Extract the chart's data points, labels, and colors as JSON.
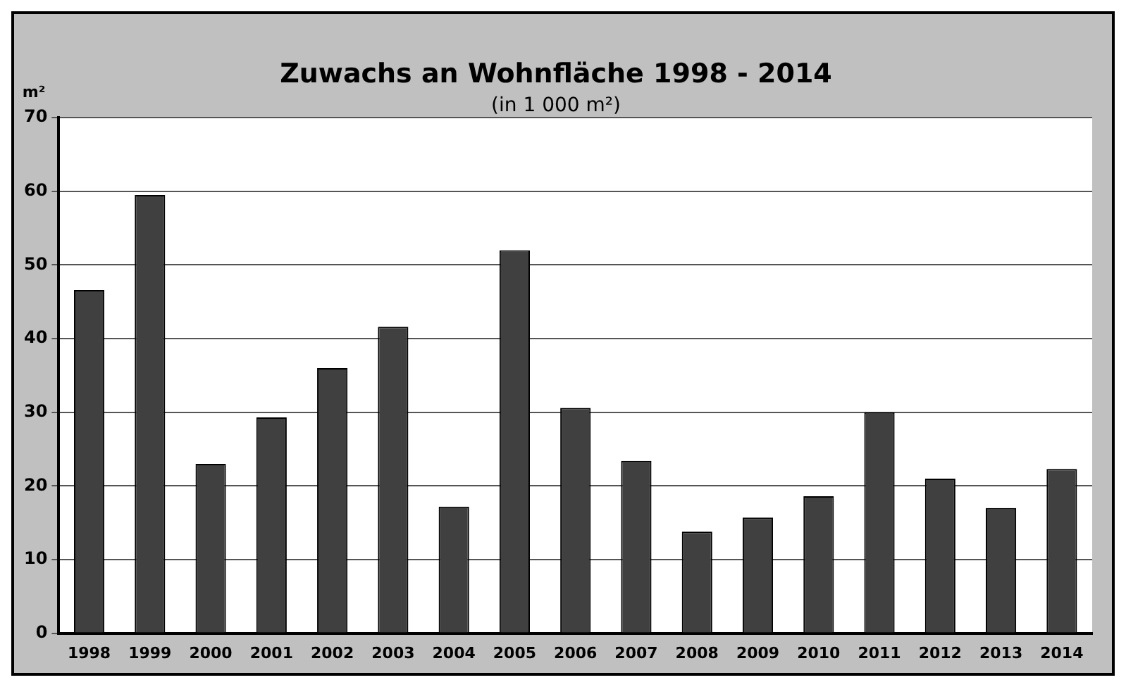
{
  "chart_data": {
    "type": "bar",
    "title": "Zuwachs an Wohnfläche 1998 - 2014",
    "subtitle": "(in 1 000 m²)",
    "ylabel": "m²",
    "categories": [
      "1998",
      "1999",
      "2000",
      "2001",
      "2002",
      "2003",
      "2004",
      "2005",
      "2006",
      "2007",
      "2008",
      "2009",
      "2010",
      "2011",
      "2012",
      "2013",
      "2014"
    ],
    "values": [
      46.6,
      59.5,
      23,
      29.3,
      36,
      41.6,
      17.2,
      52,
      30.6,
      23.4,
      13.8,
      15.7,
      18.6,
      30,
      21,
      17,
      22.3
    ],
    "color": "#404040",
    "ylim": [
      0,
      70
    ],
    "yticks": [
      0,
      10,
      20,
      30,
      40,
      50,
      60,
      70
    ],
    "grid": "y",
    "legend": false
  }
}
